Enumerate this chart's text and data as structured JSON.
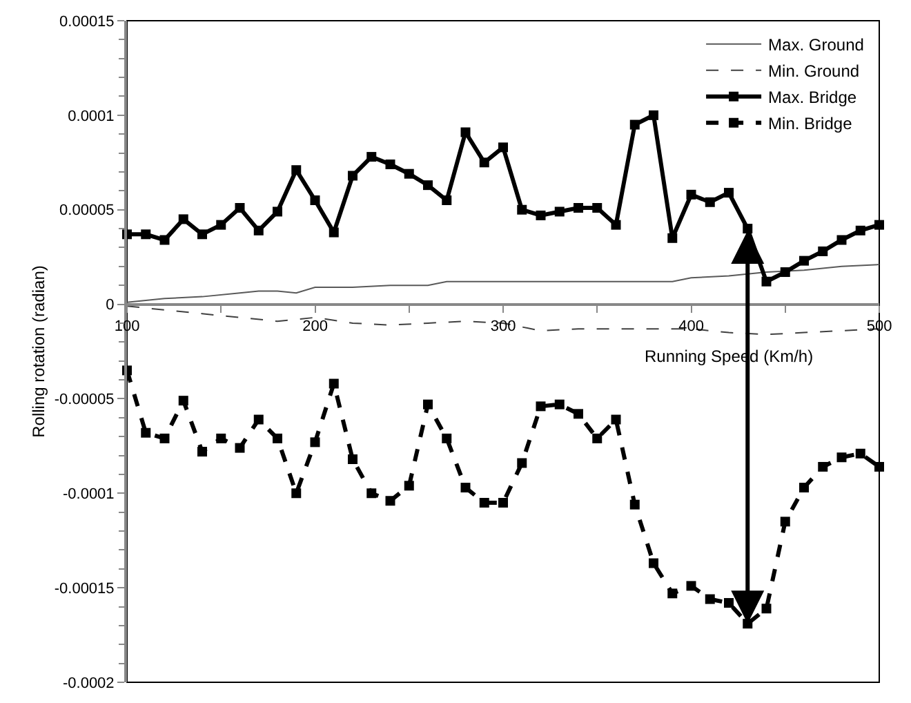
{
  "chart_data": {
    "type": "line",
    "xlabel": "Running Speed (Km/h)",
    "ylabel": "Rolling rotation (radian)",
    "xlim": [
      100,
      500
    ],
    "xticks": [
      100,
      {
        "value": 150,
        "label": null
      },
      200,
      {
        "value": 250,
        "label": null
      },
      300,
      {
        "value": 350,
        "label": null
      },
      400,
      {
        "value": 450,
        "label": null
      },
      500
    ],
    "ylim": [
      -0.0002,
      0.00015
    ],
    "yticks": [
      {
        "value": -0.0002,
        "label": "-0.0002"
      },
      {
        "value": -0.00019,
        "label": null
      },
      {
        "value": -0.00018,
        "label": null
      },
      {
        "value": -0.00017,
        "label": null
      },
      {
        "value": -0.00016,
        "label": null
      },
      {
        "value": -0.00015,
        "label": "-0.00015"
      },
      {
        "value": -0.00014,
        "label": null
      },
      {
        "value": -0.00013,
        "label": null
      },
      {
        "value": -0.00012,
        "label": null
      },
      {
        "value": -0.00011,
        "label": null
      },
      {
        "value": -0.0001,
        "label": "-0.0001"
      },
      {
        "value": -9e-05,
        "label": null
      },
      {
        "value": -8e-05,
        "label": null
      },
      {
        "value": -7e-05,
        "label": null
      },
      {
        "value": -6e-05,
        "label": null
      },
      {
        "value": -5e-05,
        "label": "-0.00005"
      },
      {
        "value": -4e-05,
        "label": null
      },
      {
        "value": -3e-05,
        "label": null
      },
      {
        "value": -2e-05,
        "label": null
      },
      {
        "value": -1e-05,
        "label": null
      },
      {
        "value": 0,
        "label": "0"
      },
      {
        "value": 1e-05,
        "label": null
      },
      {
        "value": 2e-05,
        "label": null
      },
      {
        "value": 3e-05,
        "label": null
      },
      {
        "value": 4e-05,
        "label": null
      },
      {
        "value": 5e-05,
        "label": "0.00005"
      },
      {
        "value": 6e-05,
        "label": null
      },
      {
        "value": 7e-05,
        "label": null
      },
      {
        "value": 8e-05,
        "label": null
      },
      {
        "value": 9e-05,
        "label": null
      },
      {
        "value": 0.0001,
        "label": "0.0001"
      },
      {
        "value": 0.00011,
        "label": null
      },
      {
        "value": 0.00012,
        "label": null
      },
      {
        "value": 0.00013,
        "label": null
      },
      {
        "value": 0.00014,
        "label": null
      },
      {
        "value": 0.00015,
        "label": "0.00015"
      }
    ],
    "grid": false,
    "legend": "top right",
    "series": [
      {
        "name": "Max. Ground",
        "color": "#595959",
        "line_style": "solid",
        "marker": "none",
        "x": [
          100,
          120,
          140,
          160,
          170,
          180,
          190,
          200,
          220,
          240,
          260,
          270,
          280,
          300,
          320,
          340,
          360,
          380,
          390,
          400,
          420,
          440,
          460,
          480,
          500
        ],
        "values": [
          1e-06,
          3e-06,
          4e-06,
          6e-06,
          7e-06,
          7e-06,
          6e-06,
          9e-06,
          9e-06,
          1e-05,
          1e-05,
          1.2e-05,
          1.2e-05,
          1.2e-05,
          1.2e-05,
          1.2e-05,
          1.2e-05,
          1.2e-05,
          1.2e-05,
          1.4e-05,
          1.5e-05,
          1.7e-05,
          1.8e-05,
          2e-05,
          2.1e-05
        ]
      },
      {
        "name": "Min. Ground",
        "color": "#404040",
        "line_style": "dashed",
        "marker": "none",
        "x": [
          100,
          120,
          140,
          160,
          180,
          200,
          220,
          240,
          260,
          280,
          300,
          320,
          340,
          360,
          380,
          400,
          420,
          440,
          460,
          480,
          500
        ],
        "values": [
          -1e-06,
          -3e-06,
          -5e-06,
          -7e-06,
          -9e-06,
          -7e-06,
          -1e-05,
          -1.1e-05,
          -1e-05,
          -9e-06,
          -1e-05,
          -1.4e-05,
          -1.3e-05,
          -1.3e-05,
          -1.3e-05,
          -1.3e-05,
          -1.5e-05,
          -1.6e-05,
          -1.5e-05,
          -1.4e-05,
          -1.3e-05
        ]
      },
      {
        "name": "Max. Bridge",
        "color": "#000000",
        "line_style": "solid",
        "marker": "square",
        "x": [
          100,
          110,
          120,
          130,
          140,
          150,
          160,
          170,
          180,
          190,
          200,
          210,
          220,
          230,
          240,
          250,
          260,
          270,
          280,
          290,
          300,
          310,
          320,
          330,
          340,
          350,
          360,
          370,
          380,
          390,
          400,
          410,
          420,
          430,
          440,
          450,
          460,
          470,
          480,
          490,
          500
        ],
        "values": [
          3.7e-05,
          3.7e-05,
          3.4e-05,
          4.5e-05,
          3.7e-05,
          4.2e-05,
          5.1e-05,
          3.9e-05,
          4.9e-05,
          7.1e-05,
          5.5e-05,
          3.8e-05,
          6.8e-05,
          7.8e-05,
          7.4e-05,
          6.9e-05,
          6.3e-05,
          5.5e-05,
          9.1e-05,
          7.5e-05,
          8.3e-05,
          5e-05,
          4.7e-05,
          4.9e-05,
          5.1e-05,
          5.1e-05,
          4.2e-05,
          9.5e-05,
          0.0001,
          3.5e-05,
          5.8e-05,
          5.4e-05,
          5.9e-05,
          4e-05,
          1.2e-05,
          1.7e-05,
          2.3e-05,
          2.8e-05,
          3.4e-05,
          3.9e-05,
          4.2e-05
        ]
      },
      {
        "name": "Min. Bridge",
        "color": "#000000",
        "line_style": "dashed",
        "marker": "square",
        "x": [
          100,
          110,
          120,
          130,
          140,
          150,
          160,
          170,
          180,
          190,
          200,
          210,
          220,
          230,
          240,
          250,
          260,
          270,
          280,
          290,
          300,
          310,
          320,
          330,
          340,
          350,
          360,
          370,
          380,
          390,
          400,
          410,
          420,
          430,
          440,
          450,
          460,
          470,
          480,
          490,
          500
        ],
        "values": [
          -3.5e-05,
          -6.8e-05,
          -7.1e-05,
          -5.1e-05,
          -7.8e-05,
          -7.1e-05,
          -7.6e-05,
          -6.1e-05,
          -7.1e-05,
          -0.0001,
          -7.3e-05,
          -4.2e-05,
          -8.2e-05,
          -0.0001,
          -0.000104,
          -9.6e-05,
          -5.3e-05,
          -7.1e-05,
          -9.7e-05,
          -0.000105,
          -0.000105,
          -8.4e-05,
          -5.4e-05,
          -5.3e-05,
          -5.8e-05,
          -7.1e-05,
          -6.1e-05,
          -0.000106,
          -0.000137,
          -0.000153,
          -0.000149,
          -0.000156,
          -0.000158,
          -0.000169,
          -0.000161,
          -0.000115,
          -9.7e-05,
          -8.6e-05,
          -8.1e-05,
          -7.9e-05,
          -8.6e-05
        ]
      }
    ]
  }
}
